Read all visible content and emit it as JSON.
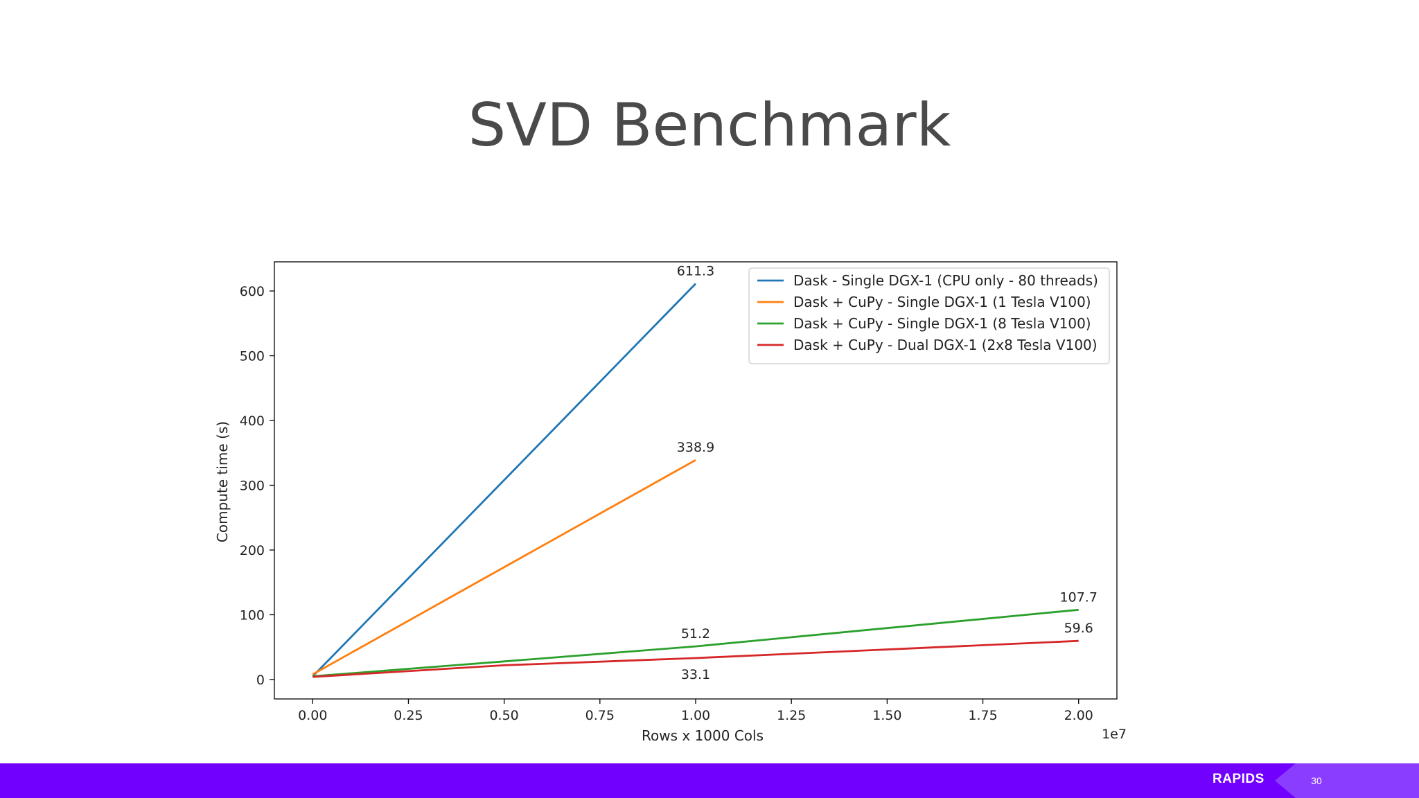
{
  "slide": {
    "title": "SVD Benchmark",
    "footer_logo": "RAPIDS",
    "page_number": "30"
  },
  "colors": {
    "footer_bar": "#7200ff",
    "footer_chevron": "#8a3dff"
  },
  "chart_data": {
    "type": "line",
    "title": "",
    "xlabel": "Rows x 1000 Cols",
    "ylabel": "Compute time (s)",
    "x_offset_label": "1e7",
    "xlim": [
      -0.1,
      2.1
    ],
    "ylim": [
      -30,
      645
    ],
    "xticks": [
      0.0,
      0.25,
      0.5,
      0.75,
      1.0,
      1.25,
      1.5,
      1.75,
      2.0
    ],
    "xtick_labels": [
      "0.00",
      "0.25",
      "0.50",
      "0.75",
      "1.00",
      "1.25",
      "1.50",
      "1.75",
      "2.00"
    ],
    "yticks": [
      0,
      100,
      200,
      300,
      400,
      500,
      600
    ],
    "ytick_labels": [
      "0",
      "100",
      "200",
      "300",
      "400",
      "500",
      "600"
    ],
    "grid": false,
    "legend_position": "top-right",
    "series": [
      {
        "name": "Dask - Single DGX-1 (CPU only - 80 threads)",
        "color": "#1f77b4",
        "x": [
          0.0,
          0.05,
          1.0
        ],
        "y": [
          5,
          35,
          611.3
        ]
      },
      {
        "name": "Dask + CuPy - Single DGX-1 (1 Tesla V100)",
        "color": "#ff7f0e",
        "x": [
          0.0,
          1.0
        ],
        "y": [
          8,
          338.9
        ]
      },
      {
        "name": "Dask + CuPy - Single DGX-1 (8 Tesla V100)",
        "color": "#2ca02c",
        "x": [
          0.0,
          0.5,
          1.0,
          2.0
        ],
        "y": [
          5,
          28,
          51.2,
          107.7
        ]
      },
      {
        "name": "Dask + CuPy - Dual DGX-1 (2x8 Tesla V100)",
        "color": "#d62728",
        "x": [
          0.0,
          0.5,
          1.0,
          2.0
        ],
        "y": [
          4,
          22,
          33.1,
          59.6
        ]
      }
    ],
    "annotations": [
      {
        "text": "611.3",
        "x": 1.0,
        "y": 611.3,
        "pos": "above"
      },
      {
        "text": "338.9",
        "x": 1.0,
        "y": 338.9,
        "pos": "above"
      },
      {
        "text": "51.2",
        "x": 1.0,
        "y": 51.2,
        "pos": "above"
      },
      {
        "text": "33.1",
        "x": 1.0,
        "y": 33.1,
        "pos": "below"
      },
      {
        "text": "107.7",
        "x": 2.0,
        "y": 107.7,
        "pos": "above"
      },
      {
        "text": "59.6",
        "x": 2.0,
        "y": 59.6,
        "pos": "above"
      }
    ]
  }
}
